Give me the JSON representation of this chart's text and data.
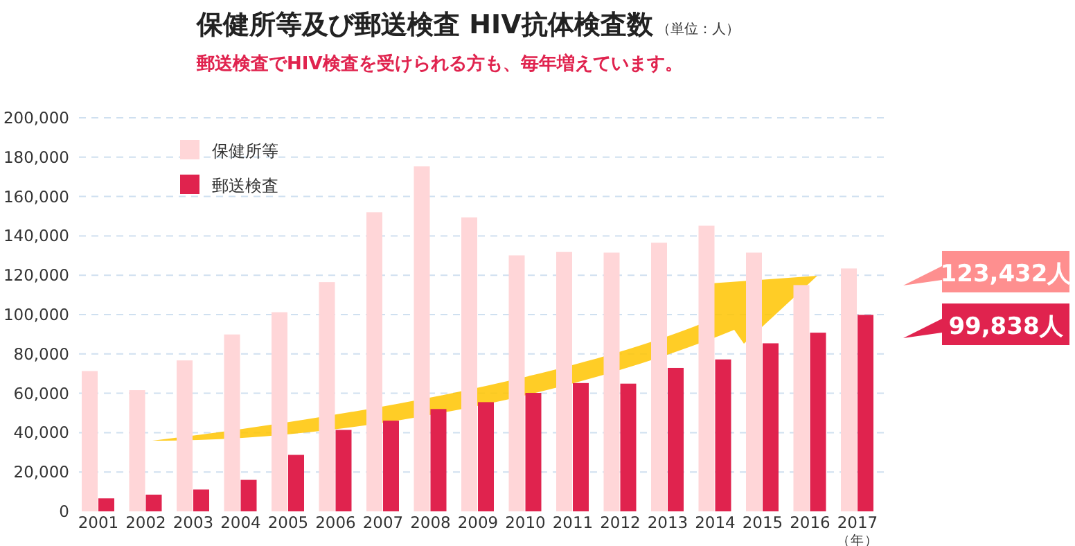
{
  "chart_data": {
    "type": "bar",
    "title": "保健所等及び郵送検査 HIV抗体検査数",
    "subtitle": "郵送検査でHIV検査を受けられる方も、毎年増えています。",
    "xlabel": "（年）",
    "annotations": [
      "（単位：人）",
      "123,432人",
      "99,838人"
    ],
    "categories": [
      "2001",
      "2002",
      "2003",
      "2004",
      "2005",
      "2006",
      "2007",
      "2008",
      "2009",
      "2010",
      "2011",
      "2012",
      "2013",
      "2014",
      "2015",
      "2016",
      "2017"
    ],
    "series": [
      {
        "name": "保健所等",
        "color": "#ffd6d8",
        "values": [
          71300,
          61600,
          76700,
          89900,
          101200,
          116500,
          152000,
          175300,
          149400,
          130100,
          131800,
          131500,
          136500,
          145200,
          131500,
          115000,
          123432
        ]
      },
      {
        "name": "郵送検査",
        "color": "#e0234e",
        "values": [
          6600,
          8500,
          11100,
          16000,
          28700,
          41400,
          46100,
          52000,
          55500,
          60200,
          65200,
          64900,
          72900,
          77200,
          85400,
          90800,
          99838
        ]
      }
    ],
    "ylim": [
      0,
      200000
    ],
    "yticks": [
      {
        "value": 0,
        "label": "0"
      },
      {
        "value": 20000,
        "label": "20,000"
      },
      {
        "value": 40000,
        "label": "40,000"
      },
      {
        "value": 60000,
        "label": "60,000"
      },
      {
        "value": 80000,
        "label": "80,000"
      },
      {
        "value": 100000,
        "label": "100,000"
      },
      {
        "value": 120000,
        "label": "120,000"
      },
      {
        "value": 140000,
        "label": "140,000"
      },
      {
        "value": 160000,
        "label": "160,000"
      },
      {
        "value": 180000,
        "label": "180,000"
      },
      {
        "value": 200000,
        "label": "200,000"
      }
    ],
    "grid": "y",
    "legend": "top left"
  }
}
